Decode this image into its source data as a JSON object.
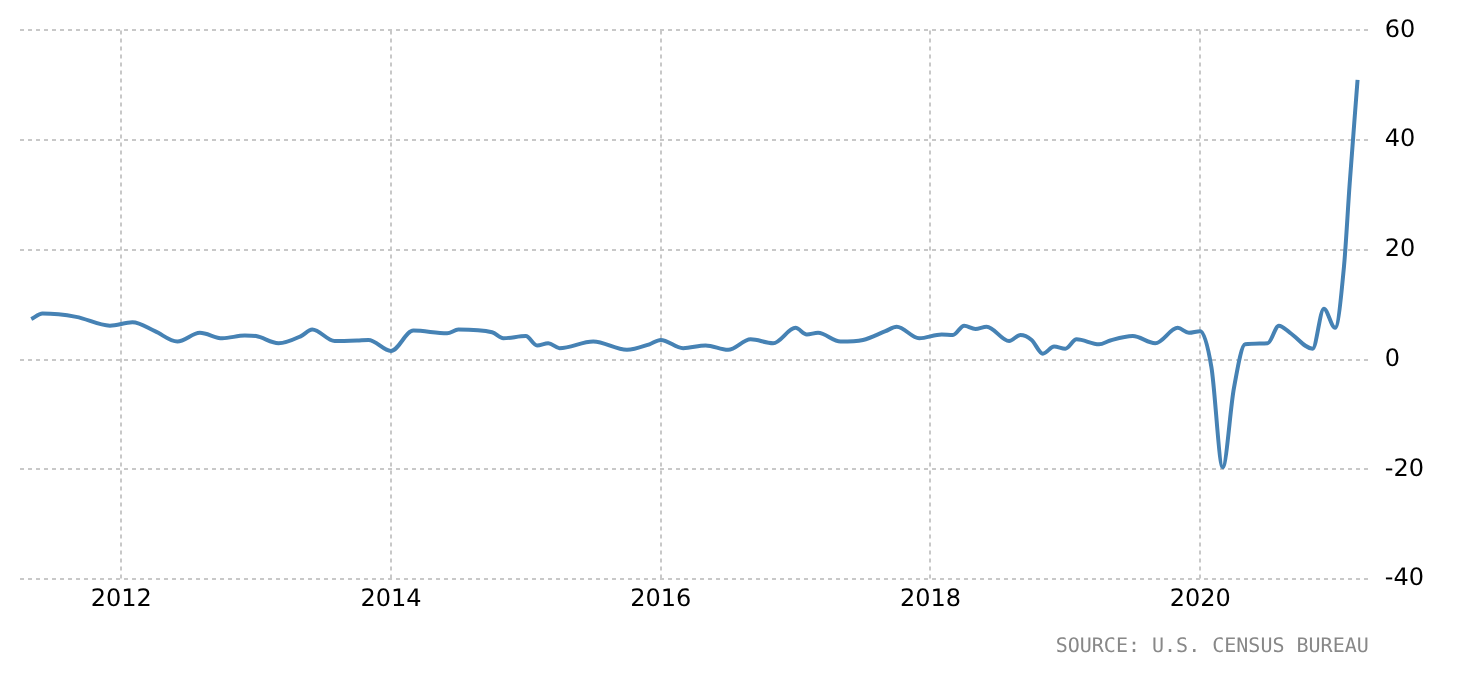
{
  "chart_data": {
    "type": "line",
    "x": [
      "2011-05",
      "2011-06",
      "2011-09",
      "2011-12",
      "2012-02",
      "2012-04",
      "2012-06",
      "2012-08",
      "2012-10",
      "2012-12",
      "2013-01",
      "2013-03",
      "2013-05",
      "2013-06",
      "2013-08",
      "2013-10",
      "2013-11",
      "2014-01",
      "2014-03",
      "2014-06",
      "2014-07",
      "2014-10",
      "2014-11",
      "2015-01",
      "2015-02",
      "2015-03",
      "2015-04",
      "2015-07",
      "2015-10",
      "2015-12",
      "2016-01",
      "2016-03",
      "2016-05",
      "2016-07",
      "2016-09",
      "2016-11",
      "2017-01",
      "2017-02",
      "2017-03",
      "2017-05",
      "2017-07",
      "2017-09",
      "2017-10",
      "2017-12",
      "2018-02",
      "2018-03",
      "2018-04",
      "2018-05",
      "2018-06",
      "2018-08",
      "2018-09",
      "2018-10",
      "2018-11",
      "2018-12",
      "2019-01",
      "2019-02",
      "2019-04",
      "2019-05",
      "2019-07",
      "2019-09",
      "2019-11",
      "2019-12",
      "2020-01",
      "2020-02",
      "2020-03",
      "2020-04",
      "2020-05",
      "2020-07",
      "2020-08",
      "2020-09",
      "2020-11",
      "2020-12",
      "2021-01-01",
      "2021-01-25",
      "2021-02-10",
      "2021-03-01"
    ],
    "series": [
      {
        "color": "#4682b4",
        "values": [
          7.4,
          8.4,
          7.8,
          6.2,
          6.8,
          5.2,
          3.3,
          4.9,
          3.9,
          4.4,
          4.3,
          3.0,
          4.3,
          5.5,
          3.4,
          3.5,
          3.6,
          1.6,
          5.3,
          4.8,
          5.5,
          5.0,
          3.9,
          4.3,
          2.6,
          3.0,
          2.1,
          3.3,
          1.8,
          2.8,
          3.6,
          2.1,
          2.6,
          1.8,
          3.7,
          3.0,
          5.8,
          4.6,
          4.9,
          3.3,
          3.6,
          5.2,
          6.0,
          3.9,
          4.6,
          4.5,
          6.2,
          5.6,
          6.0,
          3.4,
          4.5,
          3.6,
          1.1,
          2.4,
          2.0,
          3.7,
          2.8,
          3.5,
          4.3,
          3.0,
          5.8,
          4.9,
          5.2,
          -1.4,
          -19.6,
          -5.2,
          2.8,
          3.0,
          6.2,
          4.9,
          2.0,
          9.3,
          5.8,
          16.9,
          32,
          51
        ]
      }
    ],
    "xlim": [
      "2011-04",
      "2021-04"
    ],
    "xticks": [
      "2012",
      "2014",
      "2016",
      "2018",
      "2020"
    ],
    "ylim": [
      -40,
      60
    ],
    "yticks": [
      -40,
      -20,
      0,
      20,
      40,
      60
    ],
    "grid": true,
    "legend": false,
    "marker": "none",
    "line_style": "solid",
    "annotations": [
      "SOURCE: U.S. CENSUS BUREAU"
    ]
  }
}
